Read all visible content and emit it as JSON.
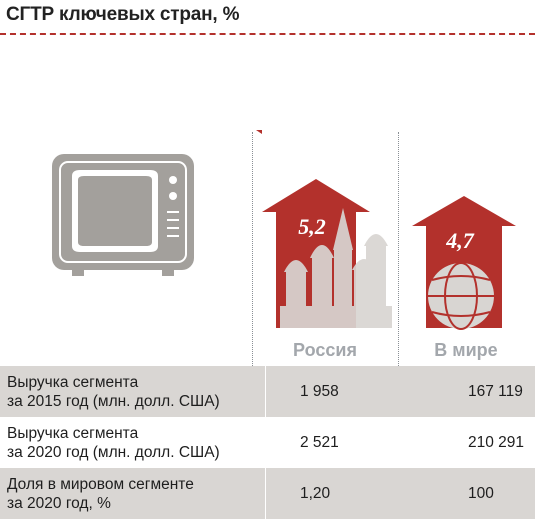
{
  "title": "СГТР ключевых стран, %",
  "colors": {
    "accent": "#b3312c",
    "icon_gray": "#a3a09c",
    "row_shade": "#d9d6d3"
  },
  "chart_data": {
    "type": "bar",
    "categories": [
      "Россия",
      "В мире"
    ],
    "values": [
      5.2,
      4.7
    ],
    "value_labels": [
      "5,2",
      "4,7"
    ],
    "title": "СГТР ключевых стран, %",
    "icons": [
      "tv-icon",
      "moscow-cathedral-icon",
      "globe-icon"
    ]
  },
  "table": {
    "columns": [
      "Россия",
      "В мире"
    ],
    "rows": [
      {
        "label_line1": "Выручка сегмента",
        "label_line2": "за 2015 год (млн. долл. США)",
        "russia": "1 958",
        "world": "167 119"
      },
      {
        "label_line1": "Выручка сегмента",
        "label_line2": "за 2020 год (млн. долл. США)",
        "russia": "2 521",
        "world": "210 291"
      },
      {
        "label_line1": "Доля в мировом сегменте",
        "label_line2": "за 2020 год, %",
        "russia": "1,20",
        "world": "100"
      }
    ]
  }
}
